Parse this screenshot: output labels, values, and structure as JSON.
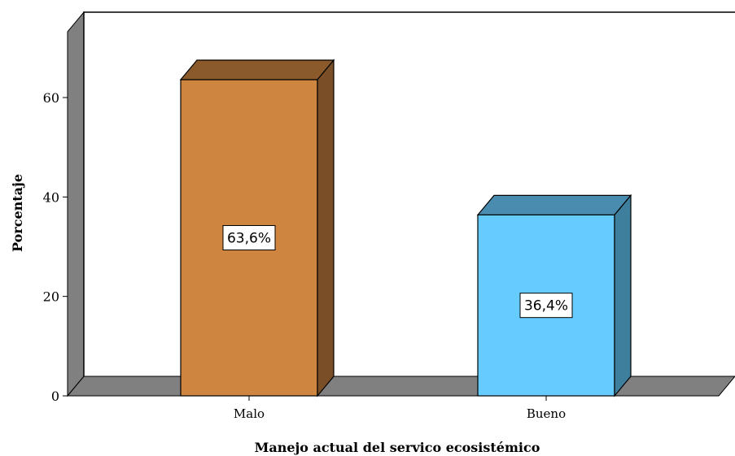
{
  "chart_data": {
    "type": "bar",
    "title": "",
    "xlabel": "Manejo actual del servico ecosistémico",
    "ylabel": "Porcentaje",
    "categories": [
      "Malo",
      "Bueno"
    ],
    "values": [
      63.6,
      36.4
    ],
    "data_labels": [
      "63,6%",
      "36,4%"
    ],
    "yticks": [
      0,
      20,
      40,
      60
    ],
    "ylim": [
      0,
      75
    ],
    "three_d": true,
    "grid": false,
    "legend": "none",
    "colors": {
      "bars": [
        {
          "front": "#CD853F",
          "top": "#8B5A2B",
          "side": "#7A4E26"
        },
        {
          "front": "#66CCFF",
          "top": "#4A8CB0",
          "side": "#3E7F9E"
        }
      ],
      "wall": "#808080",
      "floor": "#808080",
      "outline": "#000000"
    }
  }
}
